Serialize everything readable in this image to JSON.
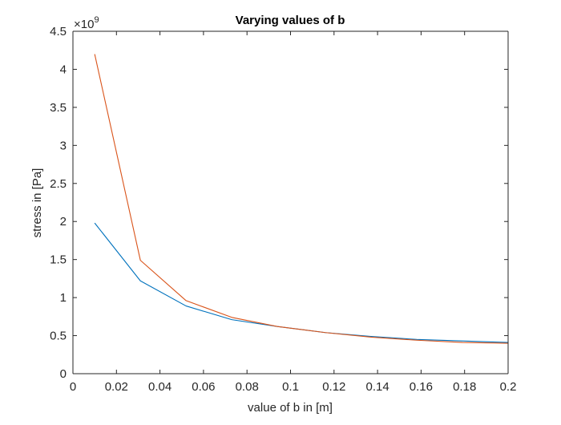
{
  "chart_data": {
    "type": "line",
    "title": "Varying values of b",
    "xlabel": "value of b in [m]",
    "ylabel": "stress in [Pa]",
    "y_exponent_label": "×10",
    "y_exponent_power": "9",
    "xlim": [
      0,
      0.2
    ],
    "ylim": [
      0,
      4.5
    ],
    "x_ticks": [
      0,
      0.02,
      0.04,
      0.06,
      0.08,
      0.1,
      0.12,
      0.14,
      0.16,
      0.18,
      0.2
    ],
    "x_tick_labels": [
      "0",
      "0.02",
      "0.04",
      "0.06",
      "0.08",
      "0.1",
      "0.12",
      "0.14",
      "0.16",
      "0.18",
      "0.2"
    ],
    "y_ticks": [
      0,
      0.5,
      1,
      1.5,
      2,
      2.5,
      3,
      3.5,
      4,
      4.5
    ],
    "y_tick_labels": [
      "0",
      "0.5",
      "1",
      "1.5",
      "2",
      "2.5",
      "3",
      "3.5",
      "4",
      "4.5"
    ],
    "grid": false,
    "x": [
      0.01,
      0.031,
      0.052,
      0.073,
      0.094,
      0.116,
      0.137,
      0.158,
      0.179,
      0.2
    ],
    "series": [
      {
        "color": "#0072BD",
        "values": [
          1.98,
          1.22,
          0.89,
          0.71,
          0.62,
          0.54,
          0.49,
          0.45,
          0.43,
          0.41
        ]
      },
      {
        "color": "#D95319",
        "values": [
          4.2,
          1.49,
          0.96,
          0.74,
          0.62,
          0.54,
          0.48,
          0.44,
          0.41,
          0.4
        ]
      }
    ]
  }
}
